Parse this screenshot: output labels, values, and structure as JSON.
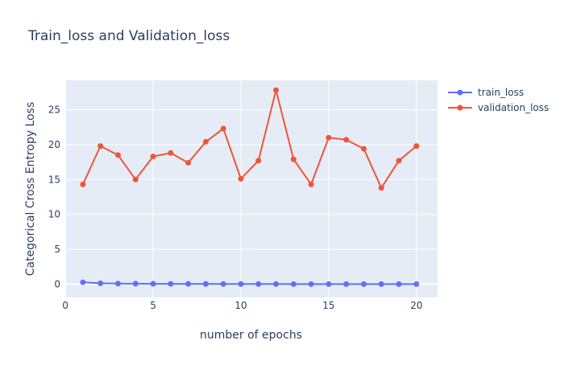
{
  "chart_data": {
    "type": "line",
    "title": "Train_loss and Validation_loss",
    "xlabel": "number of epochs",
    "ylabel": "Categorical Cross Entropy Loss",
    "x": [
      1,
      2,
      3,
      4,
      5,
      6,
      7,
      8,
      9,
      10,
      11,
      12,
      13,
      14,
      15,
      16,
      17,
      18,
      19,
      20
    ],
    "xlim": [
      -0.05,
      21.2
    ],
    "ylim": [
      -1.9,
      29.2
    ],
    "x_ticks": [
      0,
      5,
      10,
      15,
      20
    ],
    "y_ticks": [
      0,
      5,
      10,
      15,
      20,
      25
    ],
    "grid": true,
    "legend_position": "top-right",
    "plot_background": "#e5ecf6",
    "series": [
      {
        "name": "train_loss",
        "color": "#636efa",
        "values": [
          0.28,
          0.13,
          0.09,
          0.07,
          0.06,
          0.05,
          0.045,
          0.04,
          0.035,
          0.03,
          0.03,
          0.025,
          0.02,
          0.02,
          0.018,
          0.016,
          0.015,
          0.013,
          0.012,
          0.01
        ]
      },
      {
        "name": "validation_loss",
        "color": "#ef553b",
        "values": [
          14.3,
          19.8,
          18.5,
          15.0,
          18.3,
          18.8,
          17.4,
          20.4,
          22.3,
          15.1,
          17.7,
          27.8,
          17.9,
          14.3,
          21.0,
          20.7,
          19.4,
          13.8,
          17.7,
          19.8
        ]
      }
    ]
  }
}
